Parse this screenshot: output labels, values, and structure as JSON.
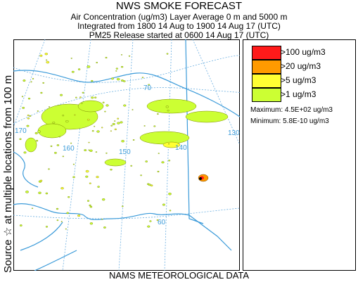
{
  "header": {
    "title": "NWS SMOKE FORECAST",
    "line1": "Air Concentration (ug/m3) Layer Average    0 m and  5000 m",
    "line2": "Integrated from 1800 14 Aug to 1900 14 Aug 17 (UTC)",
    "line3": "PM25 Release started at 0600 14 Aug 17 (UTC)"
  },
  "side_label": "Source ☆  at multiple locations  from  100 m",
  "footer": "NAMS METEOROLOGICAL DATA",
  "map": {
    "lon_labels": [
      "170",
      "160",
      "150",
      "140",
      "130"
    ],
    "lat_labels": [
      "70",
      "60"
    ],
    "colors": {
      "coast": "#3a9ad9",
      "grid": "#6aaee0",
      "border": "#3a9ad9"
    }
  },
  "legend": {
    "items": [
      {
        "label": ">100 ug/m3",
        "color": "#ff1a1a"
      },
      {
        "label": ">20 ug/m3",
        "color": "#ff9a00"
      },
      {
        "label": ">5 ug/m3",
        "color": "#ffff33"
      },
      {
        "label": ">1 ug/m3",
        "color": "#ccff33"
      }
    ],
    "maximum": "Maximum: 4.5E+02 ug/m3",
    "minimum": "Minimum: 5.8E-10 ug/m3"
  }
}
